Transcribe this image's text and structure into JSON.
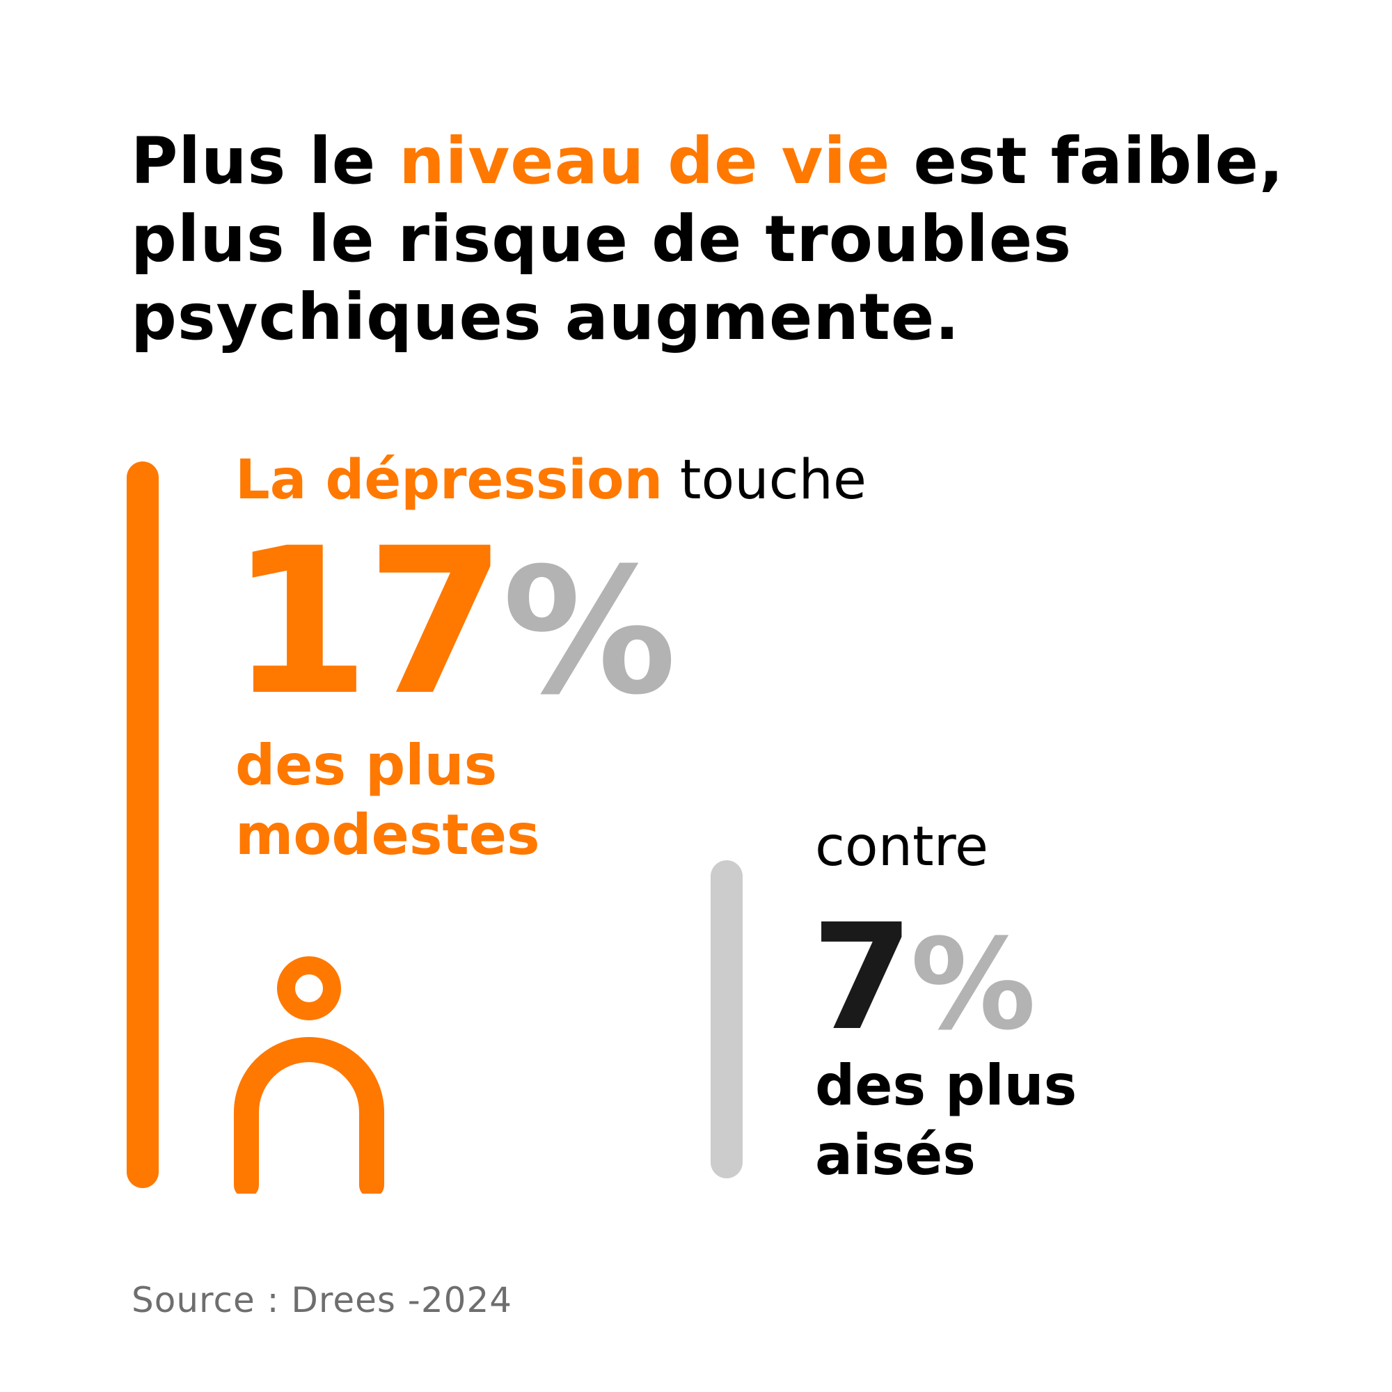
{
  "title": {
    "before": "Plus le ",
    "highlight": "niveau de vie",
    "after_line1": " est faible,",
    "line2": "plus le risque de troubles",
    "line3": "psychiques augmente."
  },
  "lead": {
    "highlight": "La dépression",
    "rest": " touche"
  },
  "stat_low_income": {
    "value": "17",
    "unit": "%",
    "label_line1": "des plus",
    "label_line2": "modestes"
  },
  "comparison_word": "contre",
  "stat_high_income": {
    "value": "7",
    "unit": "%",
    "label_line1": "des plus",
    "label_line2": "aisés"
  },
  "source": "Source : Drees -2024",
  "icons": {
    "person": "person-icon"
  },
  "colors": {
    "accent": "#FF7800",
    "percent_gray": "#B3B3B3",
    "bar_gray": "#CCCCCC",
    "text": "#000000",
    "source_text": "#6E6E6E"
  }
}
